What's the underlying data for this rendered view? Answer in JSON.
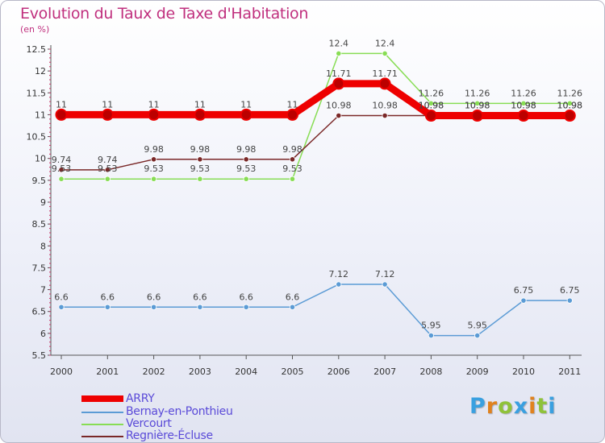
{
  "header": {
    "title": "Evolution du Taux de Taxe d'Habitation",
    "subtitle": "(en %)"
  },
  "chart_data": {
    "type": "line",
    "title": "Evolution du Taux de Taxe d'Habitation",
    "subtitle": "(en %)",
    "xlabel": "",
    "ylabel": "(en %)",
    "x": [
      "2000",
      "2001",
      "2002",
      "2003",
      "2004",
      "2005",
      "2006",
      "2007",
      "2008",
      "2009",
      "2010",
      "2011"
    ],
    "ylim": [
      5.5,
      12.5
    ],
    "yticks": [
      5.5,
      6,
      6.5,
      7,
      7.5,
      8,
      8.5,
      9,
      9.5,
      10,
      10.5,
      11,
      11.5,
      12,
      12.5
    ],
    "grid": false,
    "legend_position": "bottom-left",
    "series": [
      {
        "name": "ARRY",
        "color": "#ee0000",
        "values": [
          11,
          11,
          11,
          11,
          11,
          11,
          11.71,
          11.71,
          10.98,
          10.98,
          10.98,
          10.98
        ],
        "labels": [
          "11",
          "11",
          "11",
          "11",
          "11",
          "11",
          "11.71",
          "11.71",
          "10.98",
          "10.98",
          "10.98",
          "10.98"
        ]
      },
      {
        "name": "Bernay-en-Ponthieu",
        "color": "#5b9bd5",
        "values": [
          6.6,
          6.6,
          6.6,
          6.6,
          6.6,
          6.6,
          7.12,
          7.12,
          5.95,
          5.95,
          6.75,
          6.75
        ],
        "labels": [
          "6.6",
          "6.6",
          "6.6",
          "6.6",
          "6.6",
          "6.6",
          "7.12",
          "7.12",
          "5.95",
          "5.95",
          "6.75",
          "6.75"
        ]
      },
      {
        "name": "Vercourt",
        "color": "#88dd55",
        "values": [
          9.53,
          9.53,
          9.53,
          9.53,
          9.53,
          9.53,
          12.4,
          12.4,
          11.26,
          11.26,
          11.26,
          11.26
        ],
        "labels": [
          "9.53",
          "9.53",
          "9.53",
          "9.53",
          "9.53",
          "9.53",
          "12.4",
          "12.4",
          "11.26",
          "11.26",
          "11.26",
          "11.26"
        ]
      },
      {
        "name": "Regnière-Écluse",
        "color": "#7a2828",
        "values": [
          9.74,
          9.74,
          9.98,
          9.98,
          9.98,
          9.98,
          10.98,
          10.98,
          10.98,
          10.98,
          10.98,
          10.98
        ],
        "labels": [
          "9.74",
          "9.74",
          "9.98",
          "9.98",
          "9.98",
          "9.98",
          "10.98",
          "10.98",
          "10.98",
          "10.98",
          "10.98",
          "10.98"
        ]
      }
    ]
  },
  "brand": {
    "logo_text": "Proxiti",
    "letter_colors": [
      "#3aa0e0",
      "#e0821e",
      "#8fc23a",
      "#3aa0e0",
      "#e0821e",
      "#8fc23a",
      "#3aa0e0"
    ]
  }
}
